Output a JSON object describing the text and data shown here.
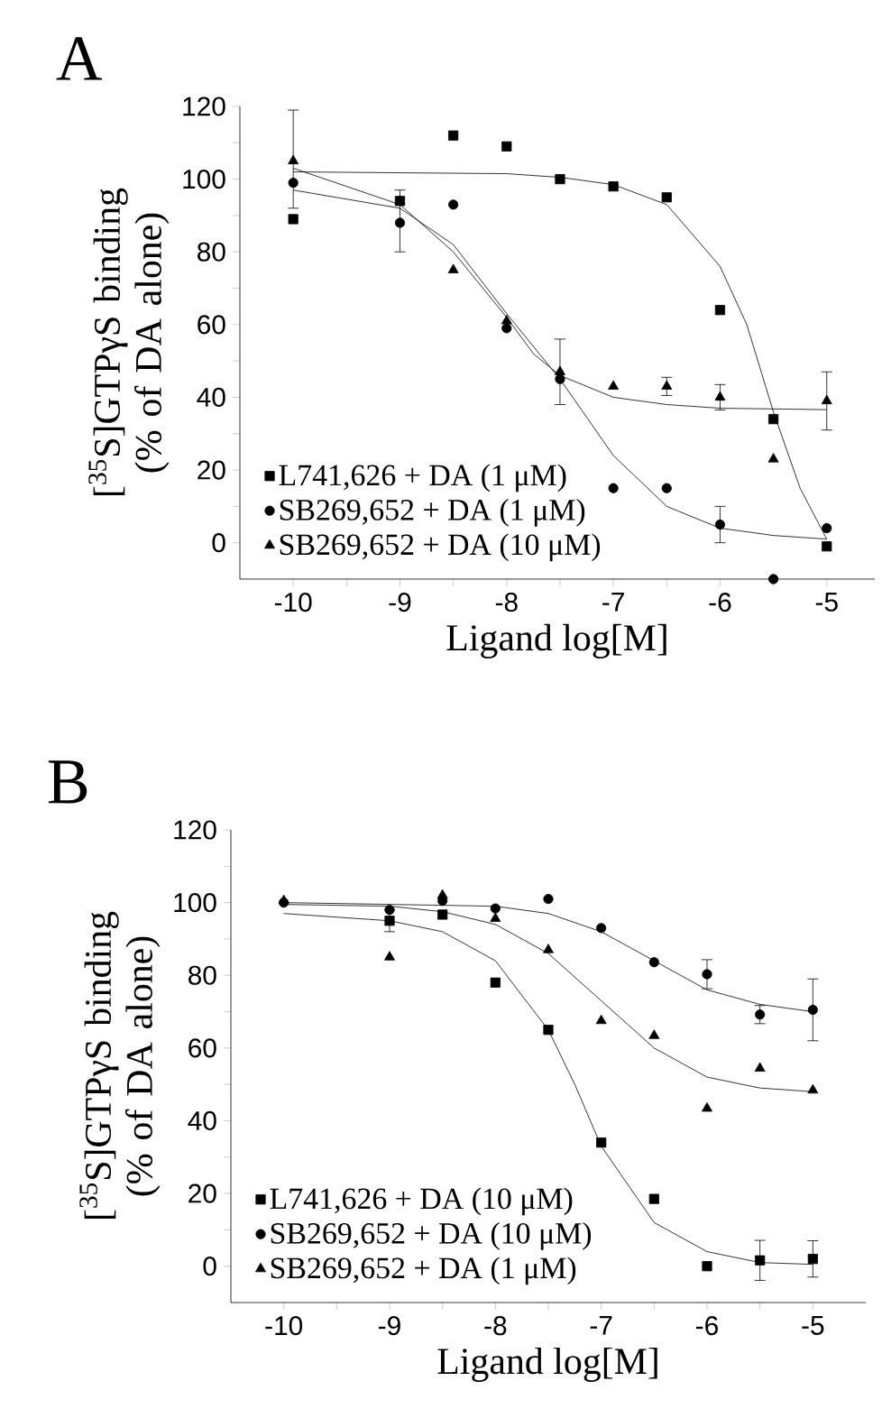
{
  "chart_data": [
    {
      "type": "scatter",
      "title": "A",
      "xlabel": "Ligand log[M]",
      "ylabel": "[$^{35}$S]GTPγS binding (% of DA alone)",
      "xlim": [
        -10.5,
        -4.55
      ],
      "ylim": [
        -10,
        120
      ],
      "xticks": [
        -10,
        -9,
        -8,
        -7,
        -6,
        -5,
        {
          "value": -9.5,
          "label": null
        },
        {
          "value": -8.5,
          "label": null
        },
        {
          "value": -7.5,
          "label": null
        },
        {
          "value": -6.5,
          "label": null
        },
        {
          "value": -5.5,
          "label": null
        }
      ],
      "yticks": [
        0,
        20,
        40,
        60,
        80,
        100,
        120,
        {
          "value": 10,
          "label": null
        },
        {
          "value": 30,
          "label": null
        },
        {
          "value": 50,
          "label": null
        },
        {
          "value": 70,
          "label": null
        },
        {
          "value": 90,
          "label": null
        },
        {
          "value": 110,
          "label": null
        }
      ],
      "legend": "bottom left",
      "series": [
        {
          "name": "L741,626 + DA (1 μM)",
          "color": "#000000",
          "marker": "square",
          "x": [
            -10,
            -9,
            -8.5,
            -8,
            -7.5,
            -7,
            -6.5,
            -6,
            -5.5,
            -5
          ],
          "values": [
            89,
            94,
            112,
            109,
            100,
            98,
            95,
            64,
            34,
            -1
          ],
          "errors": [
            null,
            null,
            null,
            null,
            null,
            null,
            null,
            null,
            null,
            null
          ]
        },
        {
          "name": "SB269,652 + DA (1 μM)",
          "color": "#000000",
          "marker": "circle",
          "x": [
            -10,
            -9,
            -8.5,
            -8,
            -7.5,
            -7,
            -6.5,
            -6,
            -5.5,
            -5
          ],
          "values": [
            99,
            88,
            93,
            59,
            45,
            15,
            15,
            5,
            -10,
            4
          ],
          "errors": [
            null,
            [
              80,
              97
            ],
            null,
            null,
            null,
            null,
            null,
            5,
            null,
            null
          ]
        },
        {
          "name": "SB269,652 + DA (10 μM)",
          "color": "#000000",
          "marker": "triangle",
          "x": [
            -10,
            -9,
            -8.5,
            -8,
            -7.5,
            -7,
            -6.5,
            -6,
            -5.5,
            -5
          ],
          "values": [
            105,
            94,
            75,
            61,
            47,
            43,
            43,
            40,
            23,
            39
          ],
          "errors": [
            [
              92,
              119
            ],
            null,
            null,
            null,
            9,
            null,
            2.5,
            3.5,
            null,
            8
          ]
        },
        {
          "type": "line",
          "color": "#000000",
          "marker": "none",
          "x": [
            -10,
            -8,
            -7.5,
            -7,
            -6.5,
            -6,
            -5.75,
            -5.5,
            -5.25,
            -5
          ],
          "values": [
            102,
            101.5,
            100.5,
            98.5,
            93,
            76,
            60,
            36,
            15,
            1
          ]
        },
        {
          "type": "line",
          "color": "#000000",
          "marker": "none",
          "x": [
            -10,
            -9,
            -8.5,
            -8,
            -7.5,
            -7,
            -6.5,
            -6,
            -5.5,
            -5
          ],
          "values": [
            97,
            92,
            82,
            63,
            45,
            24,
            10,
            4,
            2,
            1
          ]
        },
        {
          "type": "line",
          "color": "#000000",
          "marker": "none",
          "x": [
            -10,
            -9,
            -8.5,
            -8,
            -7.75,
            -7.5,
            -7,
            -6.5,
            -6,
            -5
          ],
          "values": [
            103,
            93,
            80,
            62,
            52,
            46,
            40,
            38,
            37,
            36.6
          ]
        }
      ]
    },
    {
      "type": "scatter",
      "title": "B",
      "xlabel": "Ligand log[M]",
      "ylabel": "[$^{35}$S]GTPγS binding (% of DA alone)",
      "xlim": [
        -10.5,
        -4.5
      ],
      "ylim": [
        -10,
        120
      ],
      "xticks": [
        -10,
        -9,
        -8,
        -7,
        -6,
        -5,
        {
          "value": -9.5,
          "label": null
        },
        {
          "value": -8.5,
          "label": null
        },
        {
          "value": -7.5,
          "label": null
        },
        {
          "value": -6.5,
          "label": null
        },
        {
          "value": -5.5,
          "label": null
        }
      ],
      "yticks": [
        0,
        20,
        40,
        60,
        80,
        100,
        120,
        {
          "value": 10,
          "label": null
        },
        {
          "value": 30,
          "label": null
        },
        {
          "value": 50,
          "label": null
        },
        {
          "value": 70,
          "label": null
        },
        {
          "value": 90,
          "label": null
        },
        {
          "value": 110,
          "label": null
        }
      ],
      "legend": "bottom left",
      "series": [
        {
          "name": "L741,626 + DA (10 μM)",
          "color": "#000000",
          "marker": "square",
          "x": [
            -9,
            -8.5,
            -8,
            -7.5,
            -7,
            -6.5,
            -6,
            -5.5,
            -5
          ],
          "values": [
            95,
            96.7,
            78,
            65,
            34,
            18.5,
            0,
            1.6,
            2
          ],
          "errors": [
            3,
            null,
            null,
            null,
            null,
            null,
            null,
            5.5,
            5
          ]
        },
        {
          "name": "SB269,652 + DA (10 μM)",
          "color": "#000000",
          "marker": "circle",
          "x": [
            -10,
            -9,
            -8.5,
            -8,
            -7.5,
            -7,
            -6.5,
            -6,
            -5.5,
            -5
          ],
          "values": [
            100,
            98,
            100.5,
            98.4,
            101,
            93,
            83.6,
            80.3,
            69.2,
            70.5
          ],
          "errors": [
            null,
            null,
            null,
            null,
            null,
            null,
            null,
            4,
            2.5,
            8.5
          ]
        },
        {
          "name": "SB269,652 + DA (1 μM)",
          "color": "#000000",
          "marker": "triangle",
          "x": [
            -10,
            -9,
            -8.5,
            -8,
            -7.5,
            -7,
            -6.5,
            -6,
            -5.5,
            -5
          ],
          "values": [
            100.5,
            85,
            102,
            95.6,
            87,
            67.5,
            63.4,
            43.4,
            54.4,
            48.4
          ],
          "errors": [
            null,
            null,
            null,
            null,
            null,
            null,
            null,
            null,
            null,
            null
          ]
        },
        {
          "type": "line",
          "color": "#000000",
          "marker": "none",
          "x": [
            -10,
            -9,
            -8.5,
            -8,
            -7.5,
            -7.25,
            -7,
            -6.5,
            -6,
            -5.5,
            -5
          ],
          "values": [
            97,
            95,
            92,
            84,
            65,
            50,
            33,
            12,
            4,
            1,
            0.5
          ]
        },
        {
          "type": "line",
          "color": "#000000",
          "marker": "none",
          "x": [
            -10,
            -8,
            -7.5,
            -7,
            -6.5,
            -6,
            -5.5,
            -5
          ],
          "values": [
            100,
            99,
            97,
            92,
            84,
            76,
            72,
            70
          ]
        },
        {
          "type": "line",
          "color": "#000000",
          "marker": "none",
          "x": [
            -10,
            -9,
            -8.5,
            -8,
            -7.5,
            -7,
            -6.5,
            -6,
            -5.5,
            -5
          ],
          "values": [
            99.5,
            99,
            97.5,
            94,
            86,
            73,
            60,
            52,
            49,
            48
          ]
        }
      ]
    }
  ]
}
